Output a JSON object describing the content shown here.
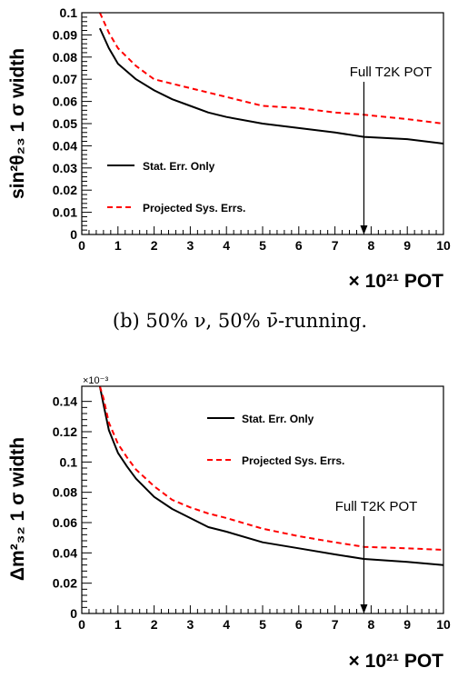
{
  "caption": "(b) 50% ν, 50% ν̄-running.",
  "chart_data": [
    {
      "type": "line",
      "ylabel": "sin²θ₂₃ 1 σ width",
      "xlabel": "× 10²¹ POT",
      "xlim": [
        0,
        10
      ],
      "ylim": [
        0,
        0.1
      ],
      "x_ticks": [
        "0",
        "1",
        "2",
        "3",
        "4",
        "5",
        "6",
        "7",
        "8",
        "9",
        "10"
      ],
      "y_ticks": [
        "0",
        "0.01",
        "0.02",
        "0.03",
        "0.04",
        "0.05",
        "0.06",
        "0.07",
        "0.08",
        "0.09",
        "0.1"
      ],
      "y_multiplier": "",
      "annotation": {
        "text": "Full T2K POT",
        "x": 7.8
      },
      "legend": {
        "position": "middle-left"
      },
      "series": [
        {
          "name": "Stat. Err. Only",
          "style": "solid",
          "color": "#000000",
          "x": [
            0.5,
            0.75,
            1.0,
            1.5,
            2.0,
            2.5,
            3.0,
            3.5,
            4.0,
            5.0,
            6.0,
            7.0,
            7.8,
            9.0,
            10.0
          ],
          "y": [
            0.093,
            0.084,
            0.077,
            0.07,
            0.065,
            0.061,
            0.058,
            0.055,
            0.053,
            0.05,
            0.048,
            0.046,
            0.044,
            0.043,
            0.041
          ]
        },
        {
          "name": "Projected Sys. Errs.",
          "style": "dashed",
          "color": "#ff0000",
          "x": [
            0.5,
            0.75,
            1.0,
            1.5,
            2.0,
            2.5,
            3.0,
            3.5,
            4.0,
            5.0,
            6.0,
            7.0,
            7.8,
            9.0,
            10.0
          ],
          "y": [
            0.1,
            0.091,
            0.084,
            0.076,
            0.07,
            0.068,
            0.066,
            0.064,
            0.062,
            0.058,
            0.057,
            0.055,
            0.054,
            0.052,
            0.05
          ]
        }
      ]
    },
    {
      "type": "line",
      "ylabel": "Δm²₃₂ 1 σ width",
      "xlabel": "× 10²¹ POT",
      "xlim": [
        0,
        10
      ],
      "ylim": [
        0,
        0.15
      ],
      "x_ticks": [
        "0",
        "1",
        "2",
        "3",
        "4",
        "5",
        "6",
        "7",
        "8",
        "9",
        "10"
      ],
      "y_ticks": [
        "0",
        "0.02",
        "0.04",
        "0.06",
        "0.08",
        "0.1",
        "0.12",
        "0.14"
      ],
      "y_multiplier": "×10⁻³",
      "annotation": {
        "text": "Full T2K POT",
        "x": 7.8
      },
      "legend": {
        "position": "top-center"
      },
      "series": [
        {
          "name": "Stat. Err. Only",
          "style": "solid",
          "color": "#000000",
          "x": [
            0.5,
            0.6,
            0.75,
            1.0,
            1.25,
            1.5,
            2.0,
            2.5,
            3.0,
            3.5,
            4.0,
            5.0,
            6.0,
            7.0,
            7.8,
            9.0,
            10.0
          ],
          "y": [
            0.15,
            0.138,
            0.121,
            0.106,
            0.097,
            0.089,
            0.077,
            0.069,
            0.063,
            0.057,
            0.054,
            0.047,
            0.043,
            0.039,
            0.036,
            0.034,
            0.032
          ]
        },
        {
          "name": "Projected Sys. Errs.",
          "style": "dashed",
          "color": "#ff0000",
          "x": [
            0.5,
            0.6,
            0.75,
            1.0,
            1.25,
            1.5,
            2.0,
            2.5,
            3.0,
            3.5,
            4.0,
            5.0,
            6.0,
            7.0,
            7.8,
            9.0,
            10.0
          ],
          "y": [
            0.15,
            0.142,
            0.126,
            0.112,
            0.103,
            0.095,
            0.084,
            0.075,
            0.07,
            0.066,
            0.063,
            0.056,
            0.051,
            0.047,
            0.044,
            0.043,
            0.042
          ]
        }
      ]
    }
  ]
}
